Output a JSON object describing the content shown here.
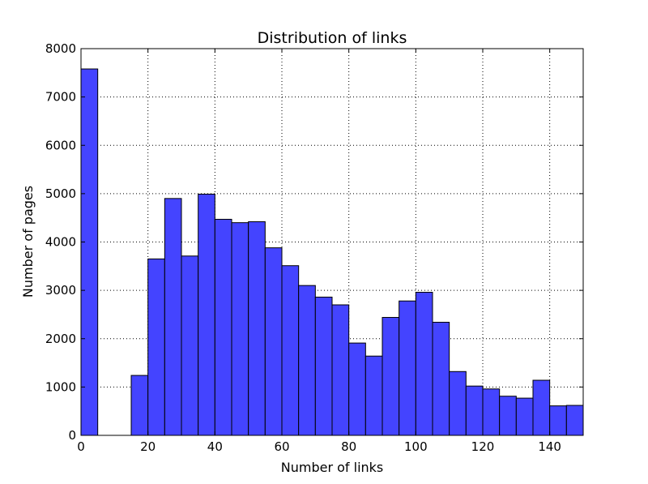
{
  "chart_data": {
    "type": "bar",
    "title": "Distribution of links",
    "xlabel": "Number of links",
    "ylabel": "Number of pages",
    "xlim": [
      0,
      150
    ],
    "ylim": [
      0,
      8000
    ],
    "bin_width": 5,
    "bin_starts": [
      0,
      5,
      10,
      15,
      20,
      25,
      30,
      35,
      40,
      45,
      50,
      55,
      60,
      65,
      70,
      75,
      80,
      85,
      90,
      95,
      100,
      105,
      110,
      115,
      120,
      125,
      130,
      135,
      140,
      145
    ],
    "values": [
      7580,
      0,
      0,
      1240,
      3650,
      4900,
      3710,
      4990,
      4470,
      4400,
      4420,
      3880,
      3510,
      3100,
      2860,
      2700,
      1910,
      1640,
      2440,
      2780,
      2960,
      2340,
      1320,
      1020,
      960,
      810,
      770,
      1140,
      610,
      620
    ],
    "x_ticks": [
      "0",
      "20",
      "40",
      "60",
      "80",
      "100",
      "120",
      "140"
    ],
    "y_ticks": [
      "0",
      "1000",
      "2000",
      "3000",
      "4000",
      "5000",
      "6000",
      "7000",
      "8000"
    ],
    "grid": true,
    "legend": "none",
    "bar_color": "#4444ff"
  }
}
